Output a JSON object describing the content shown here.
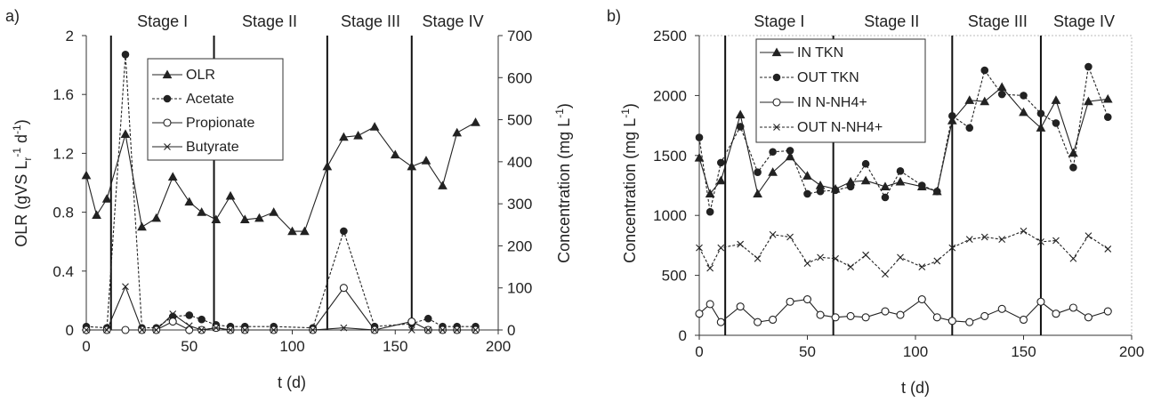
{
  "chart_data": [
    {
      "panel": "a)",
      "type": "line",
      "xlabel": "t (d)",
      "ylabel": "OLR (gVS L",
      "ylabel_sub": "r",
      "ylabel_sup1": "-1",
      "ylabel_mid": " d",
      "ylabel_sup2": "-1",
      "ylabel_end": ")",
      "y2label": "Concentration (mg L",
      "y2label_sup": "-1",
      "y2label_end": ")",
      "xlim": [
        0,
        200
      ],
      "xticks": [
        "0",
        "50",
        "100",
        "150",
        "200"
      ],
      "ylim": [
        0,
        2
      ],
      "yticks": [
        "0",
        "0.4",
        "0.8",
        "1.2",
        "1.6",
        "2"
      ],
      "y2lim": [
        0,
        700
      ],
      "y2ticks": [
        "0",
        "100",
        "200",
        "300",
        "400",
        "500",
        "600",
        "700"
      ],
      "stage_lines": [
        12,
        62,
        117,
        158
      ],
      "stages": [
        {
          "label": "Stage I",
          "x": 37
        },
        {
          "label": "Stage II",
          "x": 89
        },
        {
          "label": "Stage III",
          "x": 138
        },
        {
          "label": "Stage IV",
          "x": 178
        }
      ],
      "legend_position": "top-left",
      "series": [
        {
          "name": "OLR",
          "axis": "left",
          "style": "solid",
          "marker": "triangle",
          "x": [
            0,
            5,
            10,
            19,
            27,
            34,
            42,
            50,
            56,
            63,
            70,
            77,
            84,
            91,
            100,
            106,
            117,
            125,
            132,
            140,
            150,
            158,
            165,
            173,
            180,
            189
          ],
          "y": [
            1.05,
            0.78,
            0.89,
            1.33,
            0.7,
            0.76,
            1.04,
            0.87,
            0.8,
            0.75,
            0.91,
            0.75,
            0.76,
            0.8,
            0.67,
            0.67,
            1.11,
            1.31,
            1.32,
            1.38,
            1.19,
            1.11,
            1.15,
            0.98,
            1.34,
            1.41
          ]
        },
        {
          "name": "Acetate",
          "axis": "right",
          "style": "dashed",
          "marker": "circle-filled",
          "x": [
            0,
            10,
            19,
            27,
            34,
            42,
            50,
            56,
            63,
            70,
            77,
            91,
            110,
            125,
            140,
            158,
            166,
            173,
            180,
            189
          ],
          "y": [
            8,
            5,
            655,
            5,
            5,
            32,
            35,
            25,
            12,
            8,
            8,
            8,
            5,
            235,
            8,
            15,
            27,
            8,
            8,
            8
          ]
        },
        {
          "name": "Propionate",
          "axis": "right",
          "style": "solid",
          "marker": "circle-open",
          "x": [
            0,
            10,
            19,
            27,
            34,
            42,
            50,
            56,
            63,
            70,
            77,
            91,
            110,
            125,
            140,
            158,
            166,
            173,
            180,
            189
          ],
          "y": [
            0,
            0,
            0,
            0,
            0,
            20,
            0,
            0,
            5,
            0,
            0,
            0,
            0,
            100,
            0,
            20,
            0,
            0,
            0,
            0
          ]
        },
        {
          "name": "Butyrate",
          "axis": "right",
          "style": "solid",
          "marker": "x",
          "x": [
            0,
            10,
            19,
            27,
            34,
            42,
            50,
            56,
            63,
            70,
            77,
            91,
            110,
            125,
            140,
            158,
            166,
            173,
            180,
            189
          ],
          "y": [
            0,
            0,
            103,
            0,
            0,
            38,
            10,
            0,
            5,
            0,
            0,
            0,
            0,
            5,
            0,
            0,
            0,
            0,
            0,
            0
          ]
        }
      ]
    },
    {
      "panel": "b)",
      "type": "line",
      "xlabel": "t (d)",
      "ylabel": "Concentration (mg L",
      "ylabel_sup": "-1",
      "ylabel_end": ")",
      "xlim": [
        0,
        200
      ],
      "xticks": [
        "0",
        "50",
        "100",
        "150",
        "200"
      ],
      "ylim": [
        0,
        2500
      ],
      "yticks": [
        "0",
        "500",
        "1000",
        "1500",
        "2000",
        "2500"
      ],
      "stage_lines": [
        12,
        62,
        117,
        158
      ],
      "stages": [
        {
          "label": "Stage I",
          "x": 37
        },
        {
          "label": "Stage II",
          "x": 89
        },
        {
          "label": "Stage III",
          "x": 138
        },
        {
          "label": "Stage IV",
          "x": 178
        }
      ],
      "legend_position": "top-left",
      "series": [
        {
          "name": "IN TKN",
          "style": "solid",
          "marker": "triangle",
          "x": [
            0,
            5,
            10,
            19,
            27,
            34,
            42,
            50,
            56,
            63,
            70,
            77,
            86,
            93,
            103,
            110,
            117,
            125,
            132,
            140,
            150,
            158,
            165,
            173,
            180,
            189
          ],
          "y": [
            1480,
            1180,
            1290,
            1840,
            1180,
            1360,
            1490,
            1330,
            1250,
            1220,
            1280,
            1290,
            1240,
            1280,
            1240,
            1200,
            1790,
            1960,
            1950,
            2070,
            1860,
            1730,
            1960,
            1520,
            1950,
            1970
          ]
        },
        {
          "name": "OUT TKN",
          "style": "dashed",
          "marker": "circle-filled",
          "x": [
            0,
            5,
            10,
            19,
            27,
            34,
            42,
            50,
            56,
            63,
            70,
            77,
            86,
            93,
            103,
            110,
            117,
            125,
            132,
            140,
            150,
            158,
            165,
            173,
            180,
            189
          ],
          "y": [
            1650,
            1030,
            1440,
            1740,
            1360,
            1530,
            1540,
            1180,
            1200,
            1210,
            1240,
            1430,
            1150,
            1370,
            1250,
            1200,
            1830,
            1730,
            2210,
            2010,
            2000,
            1850,
            1770,
            1400,
            2240,
            1820
          ]
        },
        {
          "name": "IN N-NH4+",
          "style": "solid",
          "marker": "circle-open",
          "x": [
            0,
            5,
            10,
            19,
            27,
            34,
            42,
            50,
            56,
            63,
            70,
            77,
            86,
            93,
            103,
            110,
            117,
            125,
            132,
            140,
            150,
            158,
            165,
            173,
            180,
            189
          ],
          "y": [
            180,
            260,
            110,
            240,
            110,
            130,
            280,
            300,
            170,
            150,
            160,
            150,
            200,
            170,
            300,
            150,
            120,
            110,
            160,
            220,
            130,
            280,
            180,
            230,
            150,
            200
          ]
        },
        {
          "name": "OUT N-NH4+",
          "style": "dashed",
          "marker": "x",
          "x": [
            0,
            5,
            10,
            19,
            27,
            34,
            42,
            50,
            56,
            63,
            70,
            77,
            86,
            93,
            103,
            110,
            117,
            125,
            132,
            140,
            150,
            158,
            165,
            173,
            180,
            189
          ],
          "y": [
            730,
            560,
            730,
            760,
            640,
            840,
            820,
            600,
            650,
            640,
            570,
            670,
            510,
            650,
            570,
            620,
            730,
            800,
            820,
            800,
            870,
            780,
            790,
            640,
            830,
            720
          ]
        }
      ]
    }
  ]
}
